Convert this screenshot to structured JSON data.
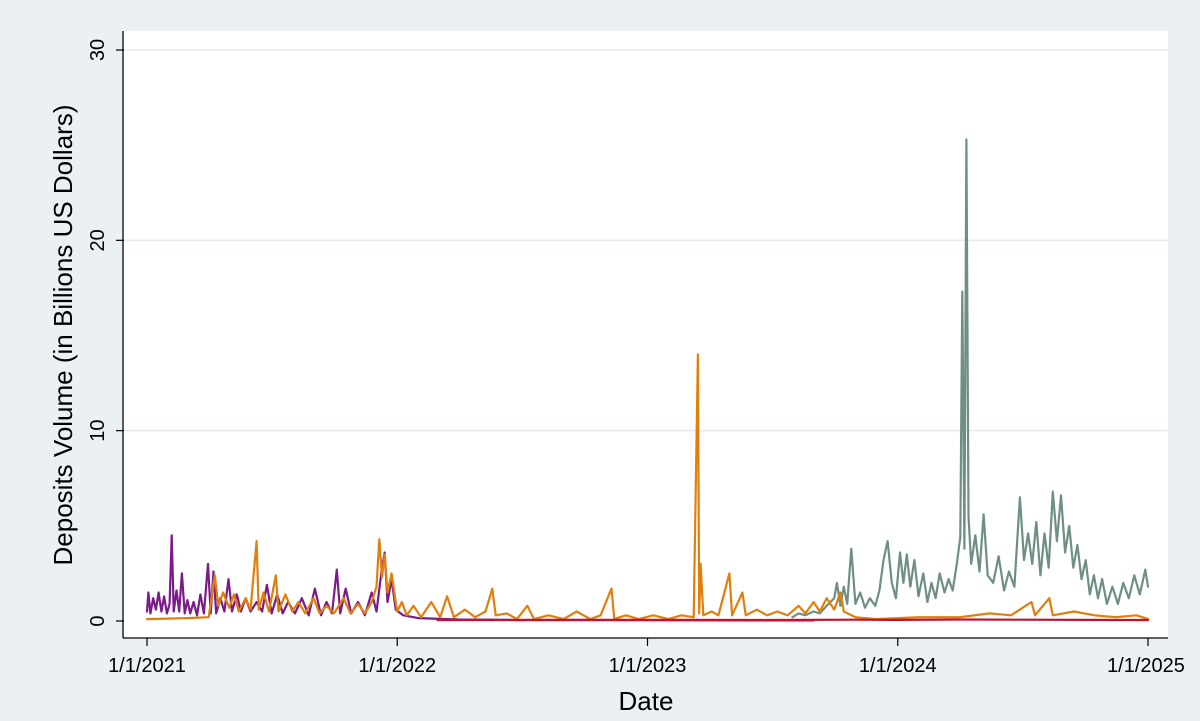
{
  "chart_data": {
    "type": "line",
    "title": "",
    "xlabel": "Date",
    "ylabel": "Deposits Volume (in Billions US Dollars)",
    "xlim": [
      "2021-01-01",
      "2025-01-01"
    ],
    "ylim": [
      0,
      30
    ],
    "x_ticks": [
      "1/1/2021",
      "1/1/2022",
      "1/1/2023",
      "1/1/2024",
      "1/1/2025"
    ],
    "y_ticks": [
      0,
      10,
      20,
      30
    ],
    "grid": true,
    "legend": "none",
    "series": [
      {
        "color": "#7b1a8a",
        "points": [
          [
            "2021-01-01",
            0.5
          ],
          [
            "2021-01-03",
            1.5
          ],
          [
            "2021-01-06",
            0.4
          ],
          [
            "2021-01-10",
            1.2
          ],
          [
            "2021-01-14",
            0.6
          ],
          [
            "2021-01-18",
            1.5
          ],
          [
            "2021-01-22",
            0.5
          ],
          [
            "2021-01-26",
            1.3
          ],
          [
            "2021-01-30",
            0.4
          ],
          [
            "2021-02-03",
            0.9
          ],
          [
            "2021-02-06",
            4.5
          ],
          [
            "2021-02-09",
            0.5
          ],
          [
            "2021-02-13",
            1.6
          ],
          [
            "2021-02-17",
            0.5
          ],
          [
            "2021-02-21",
            2.5
          ],
          [
            "2021-02-25",
            0.4
          ],
          [
            "2021-03-01",
            1.1
          ],
          [
            "2021-03-05",
            0.4
          ],
          [
            "2021-03-10",
            1.0
          ],
          [
            "2021-03-15",
            0.3
          ],
          [
            "2021-03-20",
            1.4
          ],
          [
            "2021-03-25",
            0.4
          ],
          [
            "2021-03-31",
            3.0
          ],
          [
            "2021-04-04",
            0.4
          ],
          [
            "2021-04-08",
            2.6
          ],
          [
            "2021-04-12",
            0.4
          ],
          [
            "2021-04-18",
            1.2
          ],
          [
            "2021-04-24",
            0.5
          ],
          [
            "2021-04-30",
            2.2
          ],
          [
            "2021-05-05",
            0.5
          ],
          [
            "2021-05-12",
            1.4
          ],
          [
            "2021-05-18",
            0.5
          ],
          [
            "2021-05-25",
            1.2
          ],
          [
            "2021-06-01",
            0.5
          ],
          [
            "2021-06-10",
            1.0
          ],
          [
            "2021-06-18",
            0.5
          ],
          [
            "2021-06-25",
            1.9
          ],
          [
            "2021-07-02",
            0.4
          ],
          [
            "2021-07-10",
            1.4
          ],
          [
            "2021-07-18",
            0.4
          ],
          [
            "2021-07-26",
            1.0
          ],
          [
            "2021-08-05",
            0.4
          ],
          [
            "2021-08-15",
            1.2
          ],
          [
            "2021-08-25",
            0.3
          ],
          [
            "2021-09-03",
            1.7
          ],
          [
            "2021-09-12",
            0.3
          ],
          [
            "2021-09-20",
            1.0
          ],
          [
            "2021-09-28",
            0.4
          ],
          [
            "2021-10-05",
            2.7
          ],
          [
            "2021-10-10",
            0.4
          ],
          [
            "2021-10-18",
            1.7
          ],
          [
            "2021-10-26",
            0.4
          ],
          [
            "2021-11-05",
            1.0
          ],
          [
            "2021-11-15",
            0.3
          ],
          [
            "2021-11-25",
            1.5
          ],
          [
            "2021-12-02",
            0.5
          ],
          [
            "2021-12-10",
            2.8
          ],
          [
            "2021-12-14",
            3.6
          ],
          [
            "2021-12-18",
            1.0
          ],
          [
            "2021-12-24",
            2.2
          ],
          [
            "2021-12-30",
            0.6
          ],
          [
            "2022-01-10",
            0.3
          ],
          [
            "2022-02-01",
            0.15
          ],
          [
            "2022-04-01",
            0.08
          ],
          [
            "2022-07-01",
            0.05
          ],
          [
            "2022-10-01",
            0.05
          ],
          [
            "2023-01-01",
            0.04
          ],
          [
            "2023-06-01",
            0.03
          ],
          [
            "2023-09-01",
            0.03
          ]
        ]
      },
      {
        "color": "#6e8f82",
        "points": [
          [
            "2023-08-01",
            0.2
          ],
          [
            "2023-08-10",
            0.4
          ],
          [
            "2023-08-20",
            0.3
          ],
          [
            "2023-09-01",
            0.5
          ],
          [
            "2023-09-10",
            0.4
          ],
          [
            "2023-09-20",
            0.8
          ],
          [
            "2023-10-01",
            1.2
          ],
          [
            "2023-10-05",
            2.0
          ],
          [
            "2023-10-10",
            0.8
          ],
          [
            "2023-10-15",
            1.8
          ],
          [
            "2023-10-20",
            0.9
          ],
          [
            "2023-10-26",
            3.8
          ],
          [
            "2023-11-01",
            0.9
          ],
          [
            "2023-11-08",
            1.5
          ],
          [
            "2023-11-15",
            0.7
          ],
          [
            "2023-11-22",
            1.2
          ],
          [
            "2023-11-30",
            0.8
          ],
          [
            "2023-12-06",
            1.6
          ],
          [
            "2023-12-12",
            3.2
          ],
          [
            "2023-12-18",
            4.2
          ],
          [
            "2023-12-24",
            2.0
          ],
          [
            "2023-12-30",
            1.2
          ],
          [
            "2024-01-05",
            3.6
          ],
          [
            "2024-01-10",
            2.0
          ],
          [
            "2024-01-15",
            3.5
          ],
          [
            "2024-01-20",
            1.8
          ],
          [
            "2024-01-26",
            3.2
          ],
          [
            "2024-02-01",
            1.3
          ],
          [
            "2024-02-08",
            2.5
          ],
          [
            "2024-02-14",
            1.0
          ],
          [
            "2024-02-20",
            2.0
          ],
          [
            "2024-02-26",
            1.2
          ],
          [
            "2024-03-03",
            2.5
          ],
          [
            "2024-03-10",
            1.5
          ],
          [
            "2024-03-16",
            2.2
          ],
          [
            "2024-03-22",
            1.6
          ],
          [
            "2024-03-28",
            3.0
          ],
          [
            "2024-04-02",
            4.4
          ],
          [
            "2024-04-05",
            17.3
          ],
          [
            "2024-04-08",
            3.8
          ],
          [
            "2024-04-11",
            25.3
          ],
          [
            "2024-04-14",
            5.5
          ],
          [
            "2024-04-18",
            3.0
          ],
          [
            "2024-04-24",
            4.5
          ],
          [
            "2024-04-30",
            2.6
          ],
          [
            "2024-05-06",
            5.6
          ],
          [
            "2024-05-12",
            2.4
          ],
          [
            "2024-05-20",
            2.0
          ],
          [
            "2024-05-28",
            3.4
          ],
          [
            "2024-06-05",
            1.6
          ],
          [
            "2024-06-12",
            2.6
          ],
          [
            "2024-06-20",
            1.8
          ],
          [
            "2024-06-28",
            6.5
          ],
          [
            "2024-07-04",
            3.2
          ],
          [
            "2024-07-10",
            4.6
          ],
          [
            "2024-07-16",
            3.0
          ],
          [
            "2024-07-22",
            5.2
          ],
          [
            "2024-07-28",
            2.4
          ],
          [
            "2024-08-03",
            4.6
          ],
          [
            "2024-08-09",
            2.8
          ],
          [
            "2024-08-15",
            6.8
          ],
          [
            "2024-08-21",
            4.2
          ],
          [
            "2024-08-27",
            6.6
          ],
          [
            "2024-09-02",
            3.6
          ],
          [
            "2024-09-08",
            5.0
          ],
          [
            "2024-09-14",
            2.8
          ],
          [
            "2024-09-20",
            4.0
          ],
          [
            "2024-09-26",
            2.2
          ],
          [
            "2024-10-02",
            3.2
          ],
          [
            "2024-10-08",
            1.4
          ],
          [
            "2024-10-14",
            2.4
          ],
          [
            "2024-10-20",
            1.2
          ],
          [
            "2024-10-26",
            2.2
          ],
          [
            "2024-11-02",
            0.9
          ],
          [
            "2024-11-10",
            1.8
          ],
          [
            "2024-11-18",
            0.9
          ],
          [
            "2024-11-26",
            2.0
          ],
          [
            "2024-12-04",
            1.2
          ],
          [
            "2024-12-12",
            2.4
          ],
          [
            "2024-12-20",
            1.4
          ],
          [
            "2024-12-28",
            2.7
          ],
          [
            "2025-01-01",
            1.8
          ]
        ]
      },
      {
        "color": "#e07f0c",
        "points": [
          [
            "2021-01-01",
            0.1
          ],
          [
            "2021-03-01",
            0.15
          ],
          [
            "2021-04-01",
            0.2
          ],
          [
            "2021-04-10",
            2.4
          ],
          [
            "2021-04-15",
            0.8
          ],
          [
            "2021-04-22",
            1.5
          ],
          [
            "2021-05-01",
            0.7
          ],
          [
            "2021-05-08",
            1.4
          ],
          [
            "2021-05-15",
            0.5
          ],
          [
            "2021-05-25",
            1.2
          ],
          [
            "2021-06-01",
            0.6
          ],
          [
            "2021-06-10",
            4.2
          ],
          [
            "2021-06-13",
            0.6
          ],
          [
            "2021-06-20",
            1.5
          ],
          [
            "2021-06-28",
            0.5
          ],
          [
            "2021-07-08",
            2.4
          ],
          [
            "2021-07-12",
            0.5
          ],
          [
            "2021-07-22",
            1.4
          ],
          [
            "2021-08-01",
            0.5
          ],
          [
            "2021-08-10",
            1.0
          ],
          [
            "2021-08-20",
            0.4
          ],
          [
            "2021-09-01",
            1.2
          ],
          [
            "2021-09-10",
            0.4
          ],
          [
            "2021-09-20",
            0.8
          ],
          [
            "2021-10-01",
            0.4
          ],
          [
            "2021-10-15",
            1.2
          ],
          [
            "2021-10-25",
            0.4
          ],
          [
            "2021-11-05",
            0.9
          ],
          [
            "2021-11-15",
            0.4
          ],
          [
            "2021-11-25",
            1.0
          ],
          [
            "2021-12-02",
            1.8
          ],
          [
            "2021-12-06",
            4.3
          ],
          [
            "2021-12-10",
            2.3
          ],
          [
            "2021-12-14",
            3.5
          ],
          [
            "2021-12-18",
            1.5
          ],
          [
            "2021-12-24",
            2.5
          ],
          [
            "2022-01-01",
            0.5
          ],
          [
            "2022-01-08",
            1.0
          ],
          [
            "2022-01-15",
            0.3
          ],
          [
            "2022-01-25",
            0.8
          ],
          [
            "2022-02-05",
            0.2
          ],
          [
            "2022-02-20",
            1.0
          ],
          [
            "2022-03-05",
            0.2
          ],
          [
            "2022-03-15",
            1.3
          ],
          [
            "2022-03-25",
            0.2
          ],
          [
            "2022-04-10",
            0.6
          ],
          [
            "2022-04-25",
            0.2
          ],
          [
            "2022-05-10",
            0.5
          ],
          [
            "2022-05-20",
            1.7
          ],
          [
            "2022-05-25",
            0.3
          ],
          [
            "2022-06-10",
            0.4
          ],
          [
            "2022-06-25",
            0.1
          ],
          [
            "2022-07-10",
            0.8
          ],
          [
            "2022-07-20",
            0.1
          ],
          [
            "2022-08-10",
            0.3
          ],
          [
            "2022-09-01",
            0.1
          ],
          [
            "2022-09-20",
            0.5
          ],
          [
            "2022-10-10",
            0.1
          ],
          [
            "2022-10-25",
            0.3
          ],
          [
            "2022-11-10",
            1.7
          ],
          [
            "2022-11-14",
            0.1
          ],
          [
            "2022-12-01",
            0.3
          ],
          [
            "2022-12-20",
            0.1
          ],
          [
            "2023-01-10",
            0.3
          ],
          [
            "2023-02-01",
            0.1
          ],
          [
            "2023-02-20",
            0.3
          ],
          [
            "2023-03-10",
            0.2
          ],
          [
            "2023-03-16",
            14.0
          ],
          [
            "2023-03-18",
            0.4
          ],
          [
            "2023-03-20",
            3.0
          ],
          [
            "2023-03-24",
            0.3
          ],
          [
            "2023-04-05",
            0.5
          ],
          [
            "2023-04-15",
            0.3
          ],
          [
            "2023-05-01",
            2.5
          ],
          [
            "2023-05-05",
            0.3
          ],
          [
            "2023-05-20",
            1.5
          ],
          [
            "2023-05-25",
            0.3
          ],
          [
            "2023-06-10",
            0.6
          ],
          [
            "2023-06-25",
            0.3
          ],
          [
            "2023-07-10",
            0.5
          ],
          [
            "2023-07-25",
            0.3
          ],
          [
            "2023-08-10",
            0.8
          ],
          [
            "2023-08-20",
            0.4
          ],
          [
            "2023-09-01",
            1.0
          ],
          [
            "2023-09-10",
            0.5
          ],
          [
            "2023-09-20",
            1.2
          ],
          [
            "2023-10-01",
            0.6
          ],
          [
            "2023-10-10",
            1.5
          ],
          [
            "2023-10-15",
            0.5
          ],
          [
            "2023-11-01",
            0.2
          ],
          [
            "2023-12-01",
            0.1
          ],
          [
            "2024-02-01",
            0.2
          ],
          [
            "2024-04-01",
            0.2
          ],
          [
            "2024-05-15",
            0.4
          ],
          [
            "2024-06-15",
            0.3
          ],
          [
            "2024-07-15",
            1.0
          ],
          [
            "2024-07-20",
            0.3
          ],
          [
            "2024-08-10",
            1.2
          ],
          [
            "2024-08-15",
            0.3
          ],
          [
            "2024-09-15",
            0.5
          ],
          [
            "2024-10-15",
            0.3
          ],
          [
            "2024-11-15",
            0.2
          ],
          [
            "2024-12-15",
            0.3
          ],
          [
            "2025-01-01",
            0.1
          ]
        ]
      },
      {
        "color": "#c8102e",
        "points": [
          [
            "2022-03-01",
            0.05
          ],
          [
            "2022-07-01",
            0.05
          ],
          [
            "2022-11-01",
            0.06
          ],
          [
            "2023-03-01",
            0.06
          ],
          [
            "2023-07-01",
            0.05
          ],
          [
            "2023-11-01",
            0.07
          ],
          [
            "2024-01-01",
            0.06
          ],
          [
            "2024-04-01",
            0.08
          ],
          [
            "2024-07-01",
            0.07
          ],
          [
            "2024-10-01",
            0.06
          ],
          [
            "2025-01-01",
            0.05
          ]
        ]
      }
    ]
  }
}
